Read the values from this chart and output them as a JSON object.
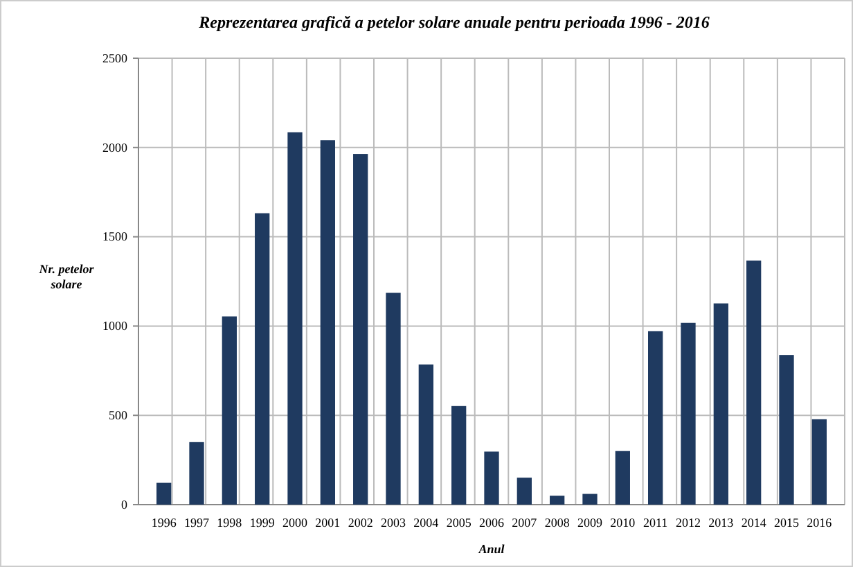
{
  "chart_data": {
    "type": "bar",
    "title": "Reprezentarea grafică a  petelor solare anuale pentru perioada 1996 - 2016",
    "xlabel": "Anul",
    "ylabel": "Nr. petelor solare",
    "categories": [
      "1996",
      "1997",
      "1998",
      "1999",
      "2000",
      "2001",
      "2002",
      "2003",
      "2004",
      "2005",
      "2006",
      "2007",
      "2008",
      "2009",
      "2010",
      "2011",
      "2012",
      "2013",
      "2014",
      "2015",
      "2016"
    ],
    "values": [
      122,
      350,
      1054,
      1632,
      2085,
      2041,
      1964,
      1186,
      785,
      552,
      297,
      151,
      50,
      60,
      300,
      971,
      1018,
      1127,
      1367,
      838,
      478
    ],
    "color": "#1f3a60",
    "ylim": [
      0,
      2500
    ],
    "yticks": [
      0,
      500,
      1000,
      1500,
      2000,
      2500
    ],
    "grid": true
  }
}
